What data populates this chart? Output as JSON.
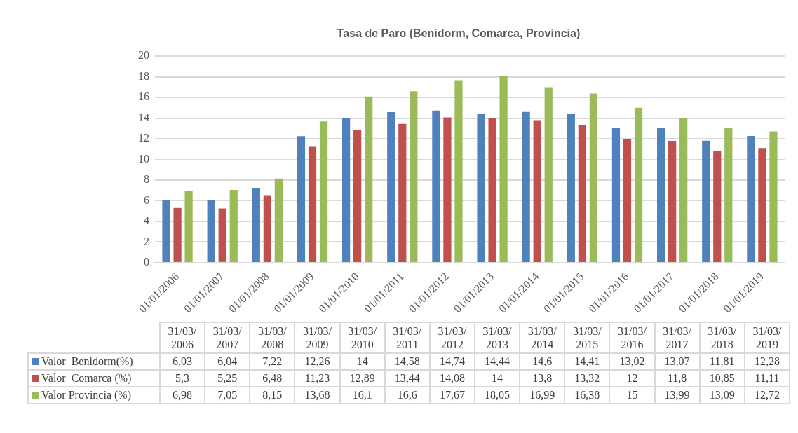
{
  "chart_data": {
    "type": "bar",
    "title": "Tasa de Paro (Benidorm, Comarca, Provincia)",
    "categories": [
      "01/01/2006",
      "01/01/2007",
      "01/01/2008",
      "01/01/2009",
      "01/01/2010",
      "01/01/2011",
      "01/01/2012",
      "01/01/2013",
      "01/01/2014",
      "01/01/2015",
      "01/01/2016",
      "01/01/2017",
      "01/01/2018",
      "01/01/2019"
    ],
    "annotations": [
      "31/03/2006",
      "31/03/2007",
      "31/03/2008",
      "31/03/2009",
      "31/03/2010",
      "31/03/2011",
      "31/03/2012",
      "31/03/2013",
      "31/03/2014",
      "31/03/2015",
      "31/03/2016",
      "31/03/2017",
      "31/03/2018",
      "31/03/2019"
    ],
    "series": [
      {
        "name": "Valor  Benidorm(%)",
        "color": "#4f81bd",
        "values": [
          6.03,
          6.04,
          7.22,
          12.26,
          14,
          14.58,
          14.74,
          14.44,
          14.6,
          14.41,
          13.02,
          13.07,
          11.81,
          12.28
        ],
        "value_labels": [
          "6,03",
          "6,04",
          "7,22",
          "12,26",
          "14",
          "14,58",
          "14,74",
          "14,44",
          "14,6",
          "14,41",
          "13,02",
          "13,07",
          "11,81",
          "12,28"
        ]
      },
      {
        "name": "Valor  Comarca (%)",
        "color": "#c0504d",
        "values": [
          5.3,
          5.25,
          6.48,
          11.23,
          12.89,
          13.44,
          14.08,
          14,
          13.8,
          13.32,
          12,
          11.8,
          10.85,
          11.11
        ],
        "value_labels": [
          "5,3",
          "5,25",
          "6,48",
          "11,23",
          "12,89",
          "13,44",
          "14,08",
          "14",
          "13,8",
          "13,32",
          "12",
          "11,8",
          "10,85",
          "11,11"
        ]
      },
      {
        "name": "Valor Provincia (%)",
        "color": "#9bbb59",
        "values": [
          6.98,
          7.05,
          8.15,
          13.68,
          16.1,
          16.6,
          17.67,
          18.05,
          16.99,
          16.38,
          15,
          13.99,
          13.09,
          12.72
        ],
        "value_labels": [
          "6,98",
          "7,05",
          "8,15",
          "13,68",
          "16,1",
          "16,6",
          "17,67",
          "18,05",
          "16,99",
          "16,38",
          "15",
          "13,99",
          "13,09",
          "12,72"
        ]
      }
    ],
    "ylim": [
      0,
      20
    ],
    "yticks": [
      0,
      2,
      4,
      6,
      8,
      10,
      12,
      14,
      16,
      18,
      20
    ],
    "grid": "y",
    "legend": "bottom left"
  }
}
